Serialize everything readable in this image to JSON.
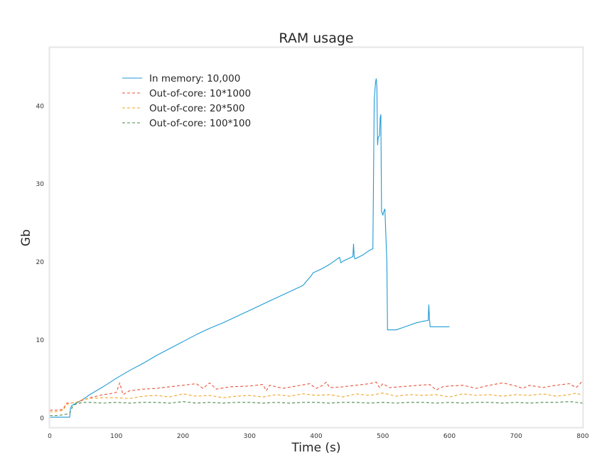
{
  "chart_data": {
    "type": "line",
    "title": "RAM usage",
    "xlabel": "Time (s)",
    "ylabel": "Gb",
    "xlim": [
      0,
      800
    ],
    "ylim": [
      -1.2,
      47.5
    ],
    "xticks": [
      0,
      100,
      200,
      300,
      400,
      500,
      600,
      700,
      800
    ],
    "yticks": [
      0,
      10,
      20,
      30,
      40
    ],
    "grid": false,
    "legend_position": "upper-left",
    "series": [
      {
        "name": "In memory: 10,000",
        "color": "#1f9ad6",
        "style": "solid",
        "x": [
          0,
          30,
          31,
          33,
          40,
          50,
          60,
          80,
          100,
          120,
          140,
          160,
          180,
          200,
          220,
          240,
          260,
          280,
          300,
          320,
          340,
          360,
          380,
          390,
          393,
          395,
          410,
          420,
          430,
          435,
          437,
          440,
          450,
          455,
          456,
          457,
          458,
          470,
          480,
          485,
          487,
          489,
          490,
          491,
          492,
          493,
          495,
          496,
          497,
          498,
          500,
          501,
          503,
          506,
          507,
          508,
          510,
          520,
          530,
          540,
          550,
          560,
          568,
          569,
          570,
          571,
          572,
          575,
          590,
          600
        ],
        "y": [
          0.1,
          0.1,
          1.2,
          1.6,
          1.9,
          2.4,
          3.0,
          4.0,
          5.1,
          6.1,
          7.0,
          8.0,
          8.9,
          9.8,
          10.7,
          11.5,
          12.2,
          13.0,
          13.8,
          14.6,
          15.4,
          16.2,
          17.0,
          18.0,
          18.3,
          18.6,
          19.2,
          19.7,
          20.3,
          20.6,
          19.9,
          20.1,
          20.5,
          20.7,
          22.3,
          20.7,
          20.4,
          20.9,
          21.5,
          21.7,
          40.8,
          43.0,
          43.5,
          42.5,
          35.0,
          36.0,
          36.2,
          38.5,
          38.9,
          26.5,
          26.0,
          26.4,
          26.8,
          20.0,
          11.3,
          11.3,
          11.3,
          11.3,
          11.6,
          11.9,
          12.2,
          12.4,
          12.5,
          14.5,
          12.6,
          11.7,
          11.7,
          11.7,
          11.7,
          11.7
        ]
      },
      {
        "name": "Out-of-core: 10*1000",
        "color": "#e8533a",
        "style": "dashed",
        "x": [
          0,
          10,
          20,
          25,
          30,
          40,
          50,
          60,
          70,
          80,
          90,
          100,
          105,
          110,
          120,
          140,
          160,
          180,
          200,
          220,
          230,
          240,
          250,
          270,
          300,
          320,
          325,
          330,
          350,
          370,
          390,
          400,
          410,
          415,
          420,
          440,
          460,
          480,
          490,
          495,
          500,
          510,
          540,
          570,
          580,
          590,
          600,
          620,
          640,
          660,
          680,
          700,
          710,
          720,
          740,
          760,
          780,
          790,
          795,
          800
        ],
        "y": [
          1.0,
          1.0,
          1.1,
          1.9,
          1.9,
          2.0,
          2.3,
          2.6,
          2.8,
          3.0,
          3.1,
          3.3,
          4.5,
          3.0,
          3.5,
          3.7,
          3.8,
          4.0,
          4.2,
          4.4,
          3.8,
          4.5,
          3.7,
          4.0,
          4.1,
          4.3,
          3.5,
          4.2,
          3.8,
          4.1,
          4.4,
          3.8,
          4.2,
          4.6,
          3.9,
          4.0,
          4.2,
          4.4,
          4.6,
          3.9,
          4.4,
          3.9,
          4.1,
          4.3,
          3.6,
          4.0,
          4.1,
          4.2,
          3.8,
          4.2,
          4.5,
          4.1,
          3.8,
          4.2,
          3.9,
          4.2,
          4.4,
          3.9,
          4.3,
          4.8
        ]
      },
      {
        "name": "Out-of-core: 20*500",
        "color": "#f2a324",
        "style": "dashed",
        "x": [
          0,
          10,
          20,
          25,
          30,
          40,
          50,
          60,
          80,
          100,
          120,
          140,
          160,
          180,
          200,
          220,
          240,
          260,
          280,
          300,
          320,
          340,
          360,
          380,
          400,
          420,
          440,
          460,
          480,
          500,
          520,
          540,
          560,
          580,
          600,
          620,
          640,
          660,
          680,
          700,
          720,
          740,
          760,
          780,
          790,
          800
        ],
        "y": [
          0.8,
          0.8,
          1.0,
          1.7,
          1.9,
          2.0,
          2.4,
          2.5,
          2.6,
          2.6,
          2.5,
          2.8,
          2.9,
          2.7,
          3.1,
          2.8,
          2.9,
          2.6,
          2.8,
          2.9,
          2.7,
          3.0,
          2.8,
          3.1,
          2.9,
          3.0,
          2.7,
          3.1,
          2.9,
          3.2,
          2.8,
          3.0,
          2.9,
          3.0,
          2.7,
          3.1,
          2.9,
          3.0,
          2.8,
          3.0,
          2.9,
          3.1,
          2.8,
          3.0,
          3.2,
          2.9
        ]
      },
      {
        "name": "Out-of-core: 100*100",
        "color": "#4a8a4c",
        "style": "dashed",
        "x": [
          0,
          10,
          20,
          30,
          35,
          40,
          50,
          60,
          80,
          100,
          120,
          140,
          160,
          180,
          200,
          220,
          240,
          260,
          280,
          300,
          320,
          340,
          360,
          380,
          400,
          420,
          440,
          460,
          480,
          500,
          520,
          540,
          560,
          580,
          600,
          620,
          640,
          660,
          680,
          700,
          720,
          740,
          760,
          780,
          800
        ],
        "y": [
          0.3,
          0.3,
          0.4,
          0.6,
          1.6,
          1.8,
          2.0,
          2.0,
          1.9,
          2.0,
          1.9,
          2.0,
          2.0,
          1.9,
          2.1,
          1.9,
          2.0,
          1.9,
          2.0,
          2.0,
          1.9,
          2.0,
          1.9,
          2.0,
          2.0,
          1.9,
          2.0,
          2.0,
          1.9,
          2.0,
          1.9,
          2.0,
          2.0,
          1.9,
          2.0,
          1.9,
          2.0,
          2.0,
          1.9,
          2.0,
          1.9,
          2.0,
          2.0,
          2.1,
          1.9
        ]
      }
    ]
  }
}
